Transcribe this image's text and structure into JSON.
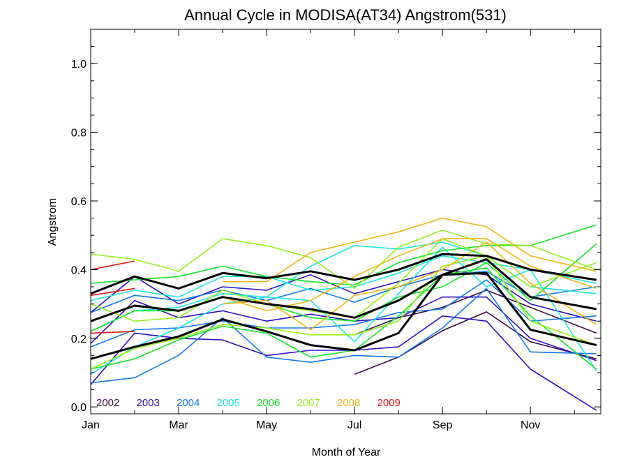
{
  "chart_data": {
    "type": "line",
    "title": "Annual Cycle in MODISA(AT34) Angstrom(531)",
    "xlabel": "Month of Year",
    "ylabel": "Angstrom",
    "xlim": [
      0,
      11.6
    ],
    "ylim": [
      -0.02,
      1.1
    ],
    "x_ticks": [
      {
        "value": 0,
        "label": "Jan"
      },
      {
        "value": 2,
        "label": "Mar"
      },
      {
        "value": 4,
        "label": "May"
      },
      {
        "value": 6,
        "label": "Jul"
      },
      {
        "value": 8,
        "label": "Sep"
      },
      {
        "value": 10,
        "label": "Nov"
      }
    ],
    "y_ticks": [
      {
        "value": 0.0,
        "label": "0.0"
      },
      {
        "value": 0.2,
        "label": "0.2"
      },
      {
        "value": 0.4,
        "label": "0.4"
      },
      {
        "value": 0.6,
        "label": "0.6"
      },
      {
        "value": 0.8,
        "label": "0.8"
      },
      {
        "value": 1.0,
        "label": "1.0"
      }
    ],
    "grid": false,
    "legend_position": "bottom-left",
    "x": [
      0,
      1,
      2,
      3,
      4,
      5,
      6,
      7,
      8,
      9,
      10,
      11.5
    ],
    "series": [
      {
        "name": "2002",
        "color": "#3b0a45",
        "values": [
          null,
          null,
          null,
          null,
          null,
          null,
          null,
          null,
          null,
          null,
          null,
          null
        ]
      },
      {
        "name": "2002",
        "color": "#3b0a45",
        "values": [
          null,
          null,
          null,
          null,
          null,
          null,
          null,
          null,
          null,
          null,
          null,
          null
        ]
      },
      {
        "name": "",
        "color": "#3b0a45",
        "values": [
          null,
          null,
          null,
          null,
          null,
          null,
          0.095,
          0.145,
          0.222,
          0.277,
          0.19,
          0.14
        ]
      },
      {
        "name": "",
        "color": "#3b0a45",
        "values": [
          null,
          null,
          null,
          null,
          null,
          null,
          0.21,
          0.26,
          0.29,
          0.34,
          0.29,
          0.215
        ]
      },
      {
        "name": "",
        "color": "#2e10c8",
        "values": [
          0.065,
          0.215,
          0.2,
          0.195,
          0.15,
          0.165,
          0.165,
          0.175,
          0.265,
          0.25,
          0.11,
          -0.01
        ]
      },
      {
        "name": "",
        "color": "#2e10c8",
        "values": [
          0.185,
          0.31,
          0.26,
          0.28,
          0.25,
          0.27,
          0.25,
          0.26,
          0.32,
          0.32,
          0.2,
          0.135
        ]
      },
      {
        "name": "",
        "color": "#2e10c8",
        "values": [
          0.275,
          0.38,
          0.3,
          0.35,
          0.34,
          0.385,
          0.33,
          0.365,
          0.4,
          0.385,
          0.3,
          0.25
        ]
      },
      {
        "name": "",
        "color": "#1478f0",
        "values": [
          0.07,
          0.085,
          0.15,
          0.26,
          0.145,
          0.13,
          0.15,
          0.145,
          0.23,
          0.345,
          0.16,
          0.155
        ]
      },
      {
        "name": "",
        "color": "#1478f0",
        "values": [
          0.175,
          0.225,
          0.23,
          0.25,
          0.23,
          0.23,
          0.24,
          0.275,
          0.285,
          0.37,
          0.25,
          0.265
        ]
      },
      {
        "name": "",
        "color": "#1478f0",
        "values": [
          0.275,
          0.325,
          0.31,
          0.34,
          0.31,
          0.345,
          0.305,
          0.35,
          0.385,
          0.395,
          0.32,
          0.35
        ]
      },
      {
        "name": "",
        "color": "#1ee8e0",
        "values": [
          0.095,
          0.175,
          0.23,
          0.3,
          0.32,
          0.31,
          0.19,
          0.33,
          0.465,
          0.35,
          0.4,
          0.105
        ]
      },
      {
        "name": "",
        "color": "#1ee8e0",
        "values": [
          0.22,
          0.28,
          0.29,
          0.33,
          0.32,
          0.41,
          0.47,
          0.46,
          0.48,
          0.44,
          0.35,
          0.33
        ]
      },
      {
        "name": "",
        "color": "#1ee8e0",
        "values": [
          0.31,
          0.34,
          0.32,
          0.38,
          0.38,
          0.34,
          0.35,
          0.39,
          0.44,
          0.42,
          0.4,
          0.36
        ]
      },
      {
        "name": "",
        "color": "#14e628",
        "values": [
          0.11,
          0.14,
          0.195,
          0.235,
          0.215,
          0.145,
          0.165,
          0.265,
          0.385,
          0.405,
          0.265,
          0.11
        ]
      },
      {
        "name": "",
        "color": "#14e628",
        "values": [
          0.22,
          0.28,
          0.28,
          0.32,
          0.3,
          0.26,
          0.25,
          0.32,
          0.35,
          0.42,
          0.31,
          0.475
        ]
      },
      {
        "name": "",
        "color": "#14e628",
        "values": [
          0.36,
          0.37,
          0.38,
          0.41,
          0.38,
          0.365,
          0.355,
          0.42,
          0.455,
          0.47,
          0.47,
          0.53
        ]
      },
      {
        "name": "",
        "color": "#96f01e",
        "values": [
          0.11,
          0.17,
          0.2,
          0.24,
          0.23,
          0.21,
          0.21,
          0.25,
          0.41,
          0.44,
          0.25,
          0.18
        ]
      },
      {
        "name": "",
        "color": "#96f01e",
        "values": [
          0.3,
          0.25,
          0.26,
          0.34,
          0.3,
          0.28,
          0.26,
          0.36,
          0.49,
          0.44,
          0.35,
          0.42
        ]
      },
      {
        "name": "",
        "color": "#96f01e",
        "values": [
          0.445,
          0.43,
          0.395,
          0.49,
          0.47,
          0.435,
          0.345,
          0.465,
          0.515,
          0.475,
          0.47,
          0.4
        ]
      },
      {
        "name": "",
        "color": "#f0b414",
        "values": [
          null,
          null,
          null,
          0.3,
          0.31,
          0.225,
          0.325,
          0.35,
          0.4,
          0.48,
          0.36,
          0.24
        ]
      },
      {
        "name": "",
        "color": "#f0b414",
        "values": [
          null,
          null,
          null,
          0.365,
          0.365,
          0.45,
          0.48,
          0.51,
          0.55,
          0.525,
          0.44,
          0.395
        ]
      },
      {
        "name": "",
        "color": "#f0b414",
        "values": [
          null,
          null,
          null,
          0.32,
          0.28,
          0.31,
          0.38,
          0.44,
          0.49,
          0.49,
          0.41,
          0.345
        ]
      },
      {
        "name": "",
        "color": "#e61414",
        "values": [
          0.215,
          0.22,
          null,
          null,
          null,
          null,
          null,
          null,
          null,
          null,
          null,
          null
        ]
      },
      {
        "name": "",
        "color": "#e61414",
        "values": [
          0.325,
          0.345,
          null,
          null,
          null,
          null,
          null,
          null,
          null,
          null,
          null,
          null
        ]
      },
      {
        "name": "",
        "color": "#e61414",
        "values": [
          0.4,
          0.425,
          null,
          null,
          null,
          null,
          null,
          null,
          null,
          null,
          null,
          null
        ]
      },
      {
        "name": "",
        "color": "#000000",
        "width": 3,
        "values": [
          0.14,
          0.175,
          0.205,
          0.255,
          0.22,
          0.18,
          0.165,
          0.215,
          0.385,
          0.39,
          0.225,
          0.18
        ]
      },
      {
        "name": "",
        "color": "#000000",
        "width": 3,
        "values": [
          0.25,
          0.295,
          0.28,
          0.32,
          0.3,
          0.285,
          0.26,
          0.31,
          0.385,
          0.43,
          0.32,
          0.285
        ]
      },
      {
        "name": "",
        "color": "#000000",
        "width": 3,
        "values": [
          0.33,
          0.38,
          0.345,
          0.39,
          0.375,
          0.395,
          0.37,
          0.4,
          0.445,
          0.44,
          0.4,
          0.37
        ]
      }
    ],
    "legend": [
      {
        "label": "2002",
        "color": "#3b0a45"
      },
      {
        "label": "2003",
        "color": "#2e10c8"
      },
      {
        "label": "2004",
        "color": "#1478f0"
      },
      {
        "label": "2005",
        "color": "#1ee8e0"
      },
      {
        "label": "2006",
        "color": "#14e628"
      },
      {
        "label": "2007",
        "color": "#96f01e"
      },
      {
        "label": "2008",
        "color": "#f0b414"
      },
      {
        "label": "2009",
        "color": "#e61414"
      }
    ]
  }
}
